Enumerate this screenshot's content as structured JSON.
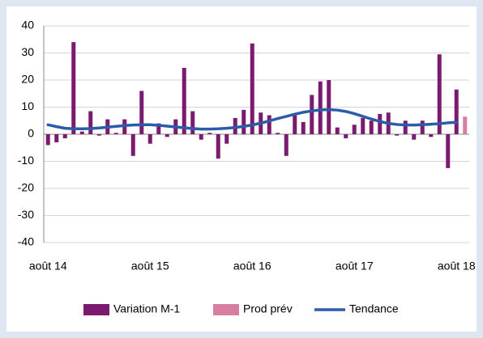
{
  "chart_data": {
    "type": "bar",
    "categories": [
      "août 14",
      null,
      null,
      null,
      null,
      null,
      null,
      null,
      null,
      null,
      null,
      null,
      "août 15",
      null,
      null,
      null,
      null,
      null,
      null,
      null,
      null,
      null,
      null,
      null,
      "août 16",
      null,
      null,
      null,
      null,
      null,
      null,
      null,
      null,
      null,
      null,
      null,
      "août 17",
      null,
      null,
      null,
      null,
      null,
      null,
      null,
      null,
      null,
      null,
      null,
      "août 18",
      null
    ],
    "series": [
      {
        "name": "Variation M-1",
        "color": "#7a1b6f",
        "type": "bar",
        "values": [
          -4,
          -3,
          -1.5,
          34,
          1,
          8.5,
          -0.5,
          5.5,
          0.5,
          5.5,
          -8,
          16,
          -3.5,
          4,
          -1,
          5.5,
          24.5,
          8.5,
          -2,
          0.5,
          -9,
          -3.5,
          6,
          9,
          33.5,
          8,
          7,
          0.5,
          -8,
          7,
          4.5,
          14.5,
          19.5,
          20,
          2.5,
          -1.5,
          3.5,
          6,
          5,
          7.5,
          8,
          -0.5,
          5,
          -2,
          5,
          -1,
          29.5,
          -12.5,
          16.5,
          null
        ]
      },
      {
        "name": "Prod prév",
        "color": "#d97ea3",
        "type": "bar",
        "values": [
          null,
          null,
          null,
          null,
          null,
          null,
          null,
          null,
          null,
          null,
          null,
          null,
          null,
          null,
          null,
          null,
          null,
          null,
          null,
          null,
          null,
          null,
          null,
          null,
          null,
          null,
          null,
          null,
          null,
          null,
          null,
          null,
          null,
          null,
          null,
          null,
          null,
          null,
          null,
          null,
          null,
          null,
          null,
          null,
          null,
          null,
          null,
          null,
          null,
          6.5
        ]
      },
      {
        "name": "Tendance",
        "color": "#2c5ca8",
        "type": "line",
        "values": [
          3.5,
          2.8,
          2.2,
          2.0,
          2.0,
          2.1,
          2.3,
          2.6,
          2.9,
          3.2,
          3.4,
          3.5,
          3.5,
          3.3,
          3.0,
          2.7,
          2.4,
          2.1,
          1.9,
          1.9,
          2.0,
          2.2,
          2.5,
          2.9,
          3.4,
          4.1,
          4.9,
          5.8,
          6.6,
          7.4,
          8.1,
          8.6,
          9.0,
          9.1,
          8.9,
          8.4,
          7.6,
          6.6,
          5.6,
          4.7,
          4.0,
          3.6,
          3.4,
          3.4,
          3.5,
          3.7,
          3.9,
          4.2,
          4.4,
          null
        ]
      }
    ],
    "ylim": [
      -40,
      40
    ],
    "yticks": [
      -40,
      -30,
      -20,
      -10,
      0,
      10,
      20,
      30,
      40
    ],
    "grid": true,
    "legend": "bottom"
  }
}
